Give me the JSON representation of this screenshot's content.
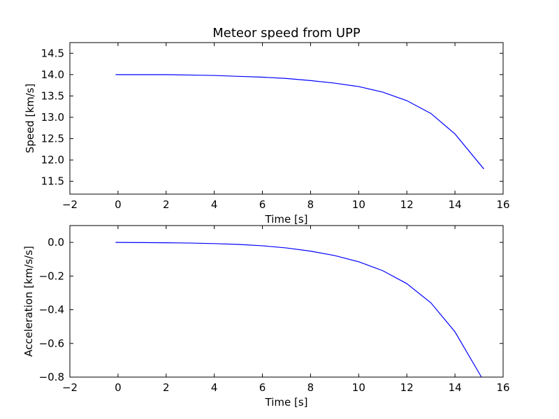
{
  "chart_data": [
    {
      "type": "line",
      "title": "Meteor speed from  UPP",
      "xlabel": "Time [s]",
      "ylabel": "Speed [km/s]",
      "xlim": [
        -2,
        16
      ],
      "ylim": [
        11.2,
        14.75
      ],
      "xticks": [
        -2,
        0,
        2,
        4,
        6,
        8,
        10,
        12,
        14,
        16
      ],
      "xtick_labels": [
        "−2",
        "0",
        "2",
        "4",
        "6",
        "8",
        "10",
        "12",
        "14",
        "16"
      ],
      "yticks": [
        11.5,
        12.0,
        12.5,
        13.0,
        13.5,
        14.0,
        14.5
      ],
      "ytick_labels": [
        "11.5",
        "12.0",
        "12.5",
        "13.0",
        "13.5",
        "14.0",
        "14.5"
      ],
      "grid": false,
      "series": [
        {
          "color": "#0000ff",
          "x": [
            -0.1,
            1,
            2,
            3,
            4,
            5,
            6,
            7,
            8,
            9,
            10,
            11,
            12,
            13,
            14,
            15.2
          ],
          "y": [
            14.0,
            14.0,
            14.0,
            13.99,
            13.98,
            13.96,
            13.94,
            13.91,
            13.86,
            13.8,
            13.72,
            13.59,
            13.39,
            13.09,
            12.61,
            11.79
          ]
        }
      ]
    },
    {
      "type": "line",
      "title": "",
      "xlabel": "Time [s]",
      "ylabel": "Acceleration [km/s/s]",
      "xlim": [
        -2,
        16
      ],
      "ylim": [
        -0.8,
        0.1
      ],
      "xticks": [
        -2,
        0,
        2,
        4,
        6,
        8,
        10,
        12,
        14,
        16
      ],
      "xtick_labels": [
        "−2",
        "0",
        "2",
        "4",
        "6",
        "8",
        "10",
        "12",
        "14",
        "16"
      ],
      "yticks": [
        -0.8,
        -0.6,
        -0.4,
        -0.2,
        0.0
      ],
      "ytick_labels": [
        "−0.8",
        "−0.6",
        "−0.4",
        "−0.2",
        "0.0"
      ],
      "grid": false,
      "series": [
        {
          "color": "#0000ff",
          "x": [
            -0.1,
            1,
            2,
            3,
            4,
            5,
            6,
            7,
            8,
            9,
            10,
            11,
            12,
            13,
            14,
            15.1
          ],
          "y": [
            -0.0,
            -0.001,
            -0.002,
            -0.004,
            -0.007,
            -0.012,
            -0.02,
            -0.033,
            -0.052,
            -0.078,
            -0.115,
            -0.168,
            -0.245,
            -0.359,
            -0.531,
            -0.8
          ]
        }
      ]
    }
  ]
}
